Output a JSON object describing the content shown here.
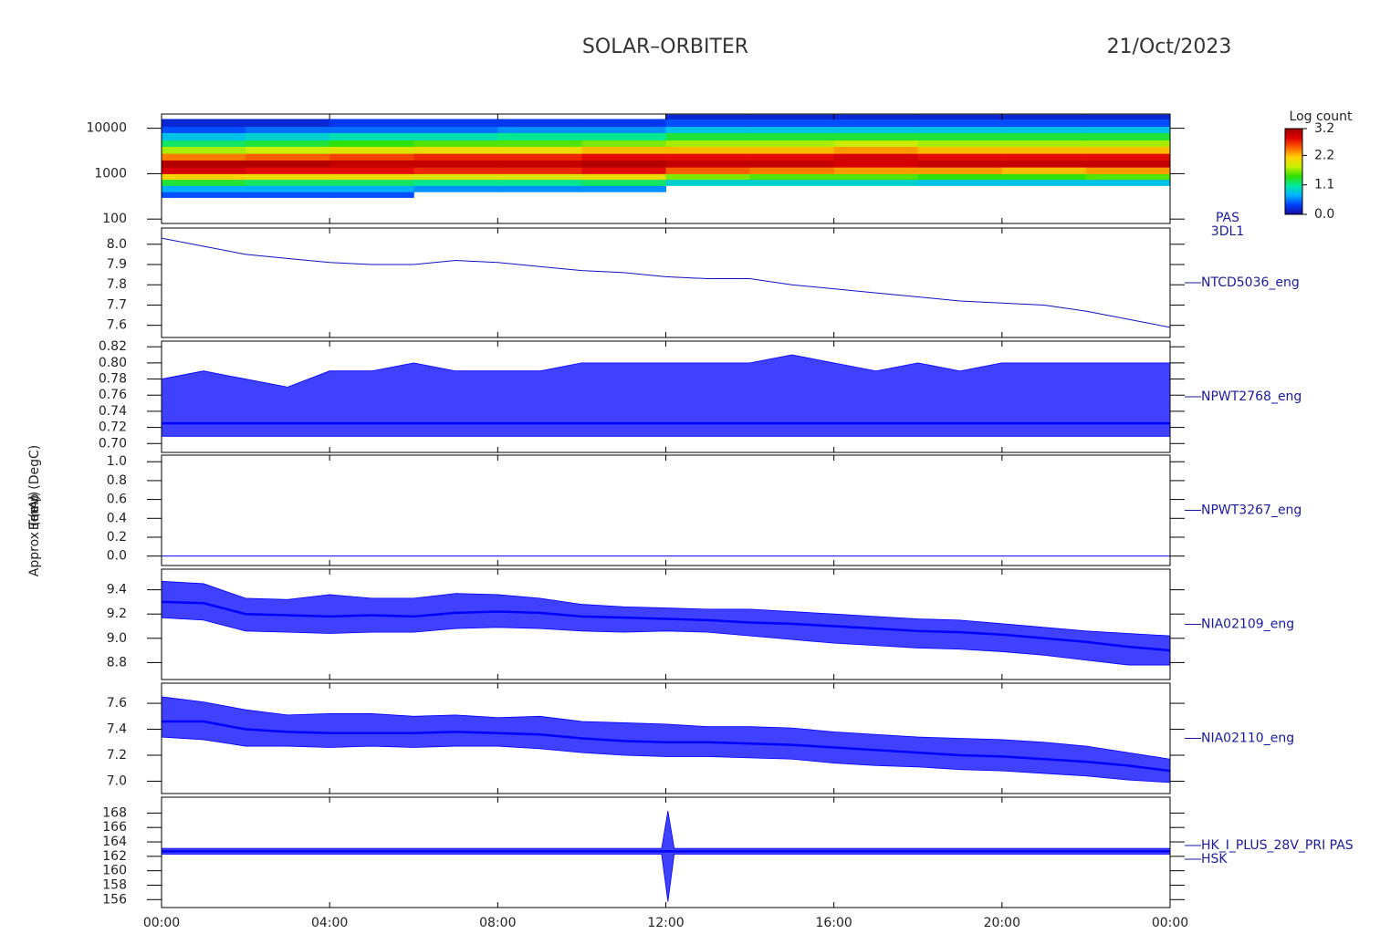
{
  "header": {
    "title": "SOLAR–ORBITER",
    "date": "21/Oct/2023"
  },
  "xaxis": {
    "xlim": [
      0,
      24
    ],
    "xticks": [
      {
        "value": 0,
        "label": "00:00"
      },
      {
        "value": 4,
        "label": "04:00"
      },
      {
        "value": 8,
        "label": "08:00"
      },
      {
        "value": 12,
        "label": "12:00"
      },
      {
        "value": 16,
        "label": "16:00"
      },
      {
        "value": 20,
        "label": "20:00"
      },
      {
        "value": 24,
        "label": "00:00"
      }
    ]
  },
  "chart_data": [
    {
      "type": "heatmap",
      "ylabel": "E (eV)",
      "label": [
        "PAS",
        "3DL1"
      ],
      "log_y": true,
      "ylim": [
        80,
        20600
      ],
      "yticks": [
        100,
        1000,
        10000
      ],
      "x": [
        0,
        2,
        4,
        6,
        8,
        10,
        12,
        14,
        16,
        18,
        20,
        22,
        24
      ],
      "y": [
        300,
        400,
        550,
        750,
        1000,
        1400,
        2000,
        2800,
        4000,
        5500,
        8000,
        11000,
        16000,
        20000
      ],
      "z": [
        [
          0.4,
          0.4,
          0.4,
          null,
          null,
          null,
          null,
          null,
          null,
          null,
          null,
          null
        ],
        [
          0.7,
          0.7,
          0.7,
          0.6,
          0.6,
          0.6,
          null,
          null,
          null,
          null,
          null,
          null
        ],
        [
          1.3,
          1.2,
          1.2,
          1.1,
          1.1,
          1.2,
          0.9,
          0.9,
          0.9,
          0.8,
          0.8,
          0.8
        ],
        [
          2.1,
          2.0,
          2.0,
          1.9,
          1.9,
          2.0,
          1.6,
          1.5,
          1.5,
          1.4,
          1.4,
          1.5
        ],
        [
          2.9,
          2.8,
          2.8,
          2.7,
          2.7,
          2.8,
          2.5,
          2.4,
          2.3,
          2.3,
          2.2,
          2.3
        ],
        [
          3.1,
          3.1,
          3.0,
          3.0,
          3.0,
          3.1,
          3.0,
          3.0,
          2.9,
          3.0,
          3.0,
          3.0
        ],
        [
          2.4,
          2.5,
          2.6,
          2.7,
          2.7,
          2.8,
          2.8,
          2.8,
          2.9,
          2.8,
          2.8,
          2.8
        ],
        [
          1.7,
          1.8,
          1.9,
          2.0,
          2.0,
          2.2,
          2.2,
          2.2,
          2.3,
          2.2,
          2.2,
          2.2
        ],
        [
          1.2,
          1.3,
          1.4,
          1.5,
          1.5,
          1.6,
          1.7,
          1.7,
          1.8,
          1.7,
          1.7,
          1.7
        ],
        [
          0.8,
          0.9,
          1.0,
          1.0,
          1.1,
          1.1,
          1.3,
          1.3,
          1.3,
          1.3,
          1.3,
          1.3
        ],
        [
          0.4,
          0.5,
          0.5,
          0.5,
          0.6,
          0.6,
          0.8,
          0.8,
          0.8,
          0.8,
          0.8,
          0.8
        ],
        [
          0.2,
          0.2,
          0.3,
          0.3,
          0.3,
          0.3,
          0.4,
          0.4,
          0.4,
          0.4,
          0.4,
          0.4
        ],
        [
          null,
          null,
          null,
          null,
          null,
          null,
          0.2,
          0.2,
          0.2,
          0.2,
          0.2,
          0.2
        ]
      ],
      "colorbar_title": "Log count",
      "zlim": [
        0,
        3.2
      ],
      "zticks": [
        {
          "value": 0,
          "label": "0.0"
        },
        1.1,
        2.2,
        3.2
      ],
      "colormap": [
        "#1a0aa0",
        "#0040ff",
        "#00b4ff",
        "#00e8a0",
        "#30e000",
        "#c8f000",
        "#ffd000",
        "#ff6000",
        "#e00000",
        "#a00000"
      ]
    },
    {
      "type": "line",
      "ylabel": "Approx Temp (DegC)",
      "label": [
        "NTCD5036_eng"
      ],
      "color": "#1010c0",
      "ylim": [
        7.54,
        8.08
      ],
      "yticks": [
        7.6,
        7.7,
        7.8,
        7.9,
        {
          "value": 8,
          "label": "8.0"
        }
      ],
      "x": [
        0,
        1,
        2,
        3,
        4,
        5,
        6,
        7,
        8,
        9,
        10,
        11,
        12,
        13,
        14,
        15,
        16,
        17,
        18,
        19,
        20,
        21,
        22,
        23,
        24
      ],
      "values": [
        8.03,
        7.99,
        7.95,
        7.93,
        7.91,
        7.9,
        7.9,
        7.92,
        7.91,
        7.89,
        7.87,
        7.86,
        7.84,
        7.83,
        7.83,
        7.8,
        7.78,
        7.76,
        7.74,
        7.72,
        7.71,
        7.7,
        7.67,
        7.63,
        7.59
      ]
    },
    {
      "type": "band",
      "label": [
        "NPWT2768_eng"
      ],
      "color": "#0000ff",
      "ylim": [
        0.689,
        0.827
      ],
      "yticks": [
        {
          "value": 0.7,
          "label": "0.70"
        },
        0.72,
        0.74,
        0.76,
        0.78,
        {
          "value": 0.8,
          "label": "0.80"
        },
        0.82
      ],
      "x": [
        0,
        1,
        2,
        3,
        4,
        5,
        6,
        7,
        8,
        9,
        10,
        11,
        12,
        13,
        14,
        15,
        16,
        17,
        18,
        19,
        20,
        21,
        22,
        23,
        24
      ],
      "values": [
        0.725,
        0.725,
        0.725,
        0.725,
        0.725,
        0.725,
        0.725,
        0.725,
        0.725,
        0.725,
        0.725,
        0.725,
        0.725,
        0.725,
        0.725,
        0.725,
        0.725,
        0.725,
        0.725,
        0.725,
        0.725,
        0.725,
        0.725,
        0.725,
        0.725
      ],
      "min": [
        0.709,
        0.709,
        0.709,
        0.709,
        0.709,
        0.709,
        0.709,
        0.709,
        0.709,
        0.709,
        0.709,
        0.709,
        0.709,
        0.709,
        0.709,
        0.709,
        0.709,
        0.709,
        0.709,
        0.709,
        0.709,
        0.709,
        0.709,
        0.709,
        0.709
      ],
      "max": [
        0.78,
        0.79,
        0.78,
        0.77,
        0.79,
        0.79,
        0.8,
        0.79,
        0.79,
        0.79,
        0.8,
        0.8,
        0.8,
        0.8,
        0.8,
        0.81,
        0.8,
        0.79,
        0.8,
        0.79,
        0.8,
        0.8,
        0.8,
        0.8,
        0.8
      ]
    },
    {
      "type": "line",
      "label": [
        "NPWT3267_eng"
      ],
      "color": "#0000ff",
      "ylim": [
        -0.1,
        1.07
      ],
      "yticks": [
        {
          "value": 0,
          "label": "0.0"
        },
        0.2,
        0.4,
        0.6,
        0.8,
        {
          "value": 1,
          "label": "1.0"
        }
      ],
      "x": [
        0,
        24
      ],
      "values": [
        0,
        0
      ]
    },
    {
      "type": "band",
      "label": [
        "NIA02109_eng"
      ],
      "color": "#0000ff",
      "ylim": [
        8.66,
        9.57
      ],
      "yticks": [
        8.8,
        {
          "value": 9,
          "label": "9.0"
        },
        9.2,
        9.4
      ],
      "x": [
        0,
        1,
        2,
        3,
        4,
        5,
        6,
        7,
        8,
        9,
        10,
        11,
        12,
        13,
        14,
        15,
        16,
        17,
        18,
        19,
        20,
        21,
        22,
        23,
        24
      ],
      "values": [
        9.3,
        9.29,
        9.2,
        9.19,
        9.18,
        9.19,
        9.18,
        9.21,
        9.22,
        9.21,
        9.18,
        9.17,
        9.16,
        9.15,
        9.13,
        9.12,
        9.1,
        9.08,
        9.06,
        9.05,
        9.03,
        9.0,
        8.97,
        8.93,
        8.9
      ],
      "min": [
        9.17,
        9.15,
        9.06,
        9.05,
        9.04,
        9.05,
        9.05,
        9.08,
        9.09,
        9.08,
        9.06,
        9.05,
        9.06,
        9.05,
        9.02,
        8.99,
        8.96,
        8.94,
        8.92,
        8.91,
        8.89,
        8.86,
        8.82,
        8.78,
        8.78
      ],
      "max": [
        9.47,
        9.45,
        9.33,
        9.32,
        9.36,
        9.33,
        9.33,
        9.37,
        9.36,
        9.33,
        9.28,
        9.26,
        9.25,
        9.24,
        9.24,
        9.22,
        9.2,
        9.18,
        9.16,
        9.15,
        9.12,
        9.09,
        9.06,
        9.04,
        9.02
      ]
    },
    {
      "type": "band",
      "label": [
        "NIA02110_eng"
      ],
      "color": "#0000ff",
      "ylim": [
        6.905,
        7.755
      ],
      "yticks": [
        {
          "value": 7,
          "label": "7.0"
        },
        7.2,
        7.4,
        7.6
      ],
      "x": [
        0,
        1,
        2,
        3,
        4,
        5,
        6,
        7,
        8,
        9,
        10,
        11,
        12,
        13,
        14,
        15,
        16,
        17,
        18,
        19,
        20,
        21,
        22,
        23,
        24
      ],
      "values": [
        7.46,
        7.46,
        7.4,
        7.38,
        7.37,
        7.37,
        7.37,
        7.38,
        7.37,
        7.36,
        7.33,
        7.31,
        7.3,
        7.3,
        7.29,
        7.28,
        7.26,
        7.24,
        7.22,
        7.2,
        7.19,
        7.17,
        7.15,
        7.12,
        7.08
      ],
      "min": [
        7.34,
        7.32,
        7.27,
        7.27,
        7.26,
        7.27,
        7.26,
        7.27,
        7.27,
        7.25,
        7.22,
        7.2,
        7.19,
        7.19,
        7.18,
        7.17,
        7.14,
        7.12,
        7.11,
        7.09,
        7.08,
        7.06,
        7.04,
        7.01,
        6.99
      ],
      "max": [
        7.65,
        7.61,
        7.55,
        7.51,
        7.52,
        7.52,
        7.5,
        7.51,
        7.49,
        7.5,
        7.46,
        7.45,
        7.44,
        7.42,
        7.42,
        7.41,
        7.38,
        7.36,
        7.34,
        7.33,
        7.32,
        7.3,
        7.27,
        7.22,
        7.17
      ]
    },
    {
      "type": "band",
      "ylabel": "(mA)",
      "label": [
        "HK_I_PLUS_28V_PRI PAS",
        "HSK"
      ],
      "color": "#0000ff",
      "ylim": [
        154.9,
        170.2
      ],
      "yticks": [
        156,
        158,
        160,
        162,
        164,
        166,
        168
      ],
      "x": [
        0,
        1,
        2,
        3,
        4,
        5,
        6,
        7,
        8,
        9,
        10,
        11,
        11.9,
        12.05,
        12.2,
        13,
        14,
        15,
        16,
        17,
        18,
        19,
        20,
        21,
        22,
        23,
        24
      ],
      "values": [
        162.7,
        162.7,
        162.7,
        162.7,
        162.7,
        162.7,
        162.7,
        162.7,
        162.7,
        162.7,
        162.7,
        162.7,
        162.7,
        162.7,
        162.7,
        162.7,
        162.7,
        162.7,
        162.7,
        162.7,
        162.7,
        162.7,
        162.7,
        162.7,
        162.7,
        162.7,
        162.7
      ],
      "min": [
        162.3,
        162.3,
        162.3,
        162.3,
        162.3,
        162.3,
        162.3,
        162.3,
        162.3,
        162.3,
        162.3,
        162.3,
        162.3,
        155.7,
        162.3,
        162.3,
        162.3,
        162.3,
        162.3,
        162.3,
        162.3,
        162.3,
        162.3,
        162.3,
        162.3,
        162.3,
        162.3
      ],
      "max": [
        163.1,
        163.1,
        163.1,
        163.1,
        163.1,
        163.1,
        163.1,
        163.1,
        163.1,
        163.1,
        163.1,
        163.1,
        163.1,
        168.3,
        163.1,
        163.1,
        163.1,
        163.1,
        163.1,
        163.1,
        163.1,
        163.1,
        163.1,
        163.1,
        163.1,
        163.1,
        163.1
      ]
    }
  ]
}
